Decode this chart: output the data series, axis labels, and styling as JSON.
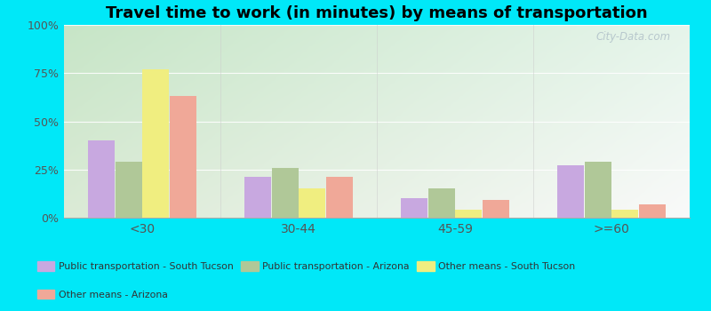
{
  "title": "Travel time to work (in minutes) by means of transportation",
  "categories": [
    "<30",
    "30-44",
    "45-59",
    ">=60"
  ],
  "series_order": [
    "Public transportation - South Tucson",
    "Public transportation - Arizona",
    "Other means - South Tucson",
    "Other means - Arizona"
  ],
  "series": {
    "Public transportation - South Tucson": [
      40,
      21,
      10,
      27
    ],
    "Public transportation - Arizona": [
      29,
      26,
      15,
      29
    ],
    "Other means - South Tucson": [
      77,
      15,
      4,
      4
    ],
    "Other means - Arizona": [
      63,
      21,
      9,
      7
    ]
  },
  "colors": {
    "Public transportation - South Tucson": "#c8a8e0",
    "Public transportation - Arizona": "#b0c898",
    "Other means - South Tucson": "#f0ee80",
    "Other means - Arizona": "#f0a898"
  },
  "background_outer": "#00e8f8",
  "ylim": [
    0,
    100
  ],
  "yticks": [
    0,
    25,
    50,
    75,
    100
  ],
  "ytick_labels": [
    "0%",
    "25%",
    "50%",
    "75%",
    "100%"
  ],
  "title_fontsize": 13,
  "watermark": "City-Data.com",
  "legend_order": [
    "Public transportation - South Tucson",
    "Public transportation - Arizona",
    "Other means - South Tucson",
    "Other means - Arizona"
  ]
}
